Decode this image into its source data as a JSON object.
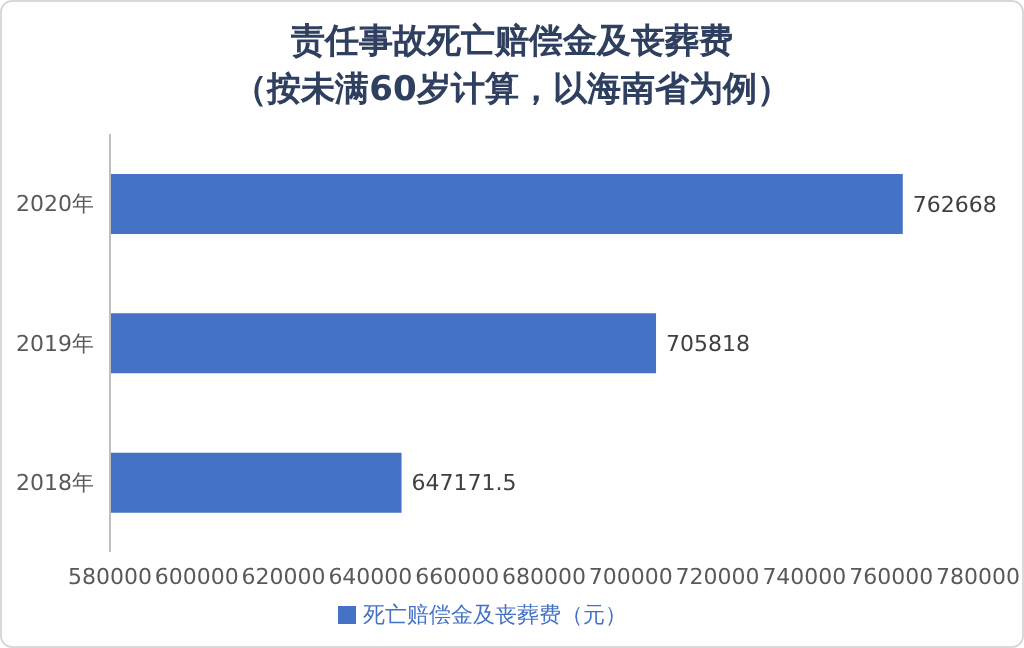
{
  "chart_data": {
    "type": "bar",
    "orientation": "horizontal",
    "title": "责任事故死亡赔偿金及丧葬费",
    "subtitle": "（按未满60岁计算，以海南省为例）",
    "categories": [
      "2020年",
      "2019年",
      "2018年"
    ],
    "series": [
      {
        "name": "死亡赔偿金及丧葬费（元）",
        "color": "#4472c4",
        "values": [
          762668,
          705818,
          647171.5
        ]
      }
    ],
    "xlim": [
      580000,
      780000
    ],
    "xticks": [
      580000,
      600000,
      620000,
      640000,
      660000,
      680000,
      700000,
      720000,
      740000,
      760000,
      780000
    ],
    "data_labels": true,
    "legend": "bottom",
    "grid": false
  }
}
